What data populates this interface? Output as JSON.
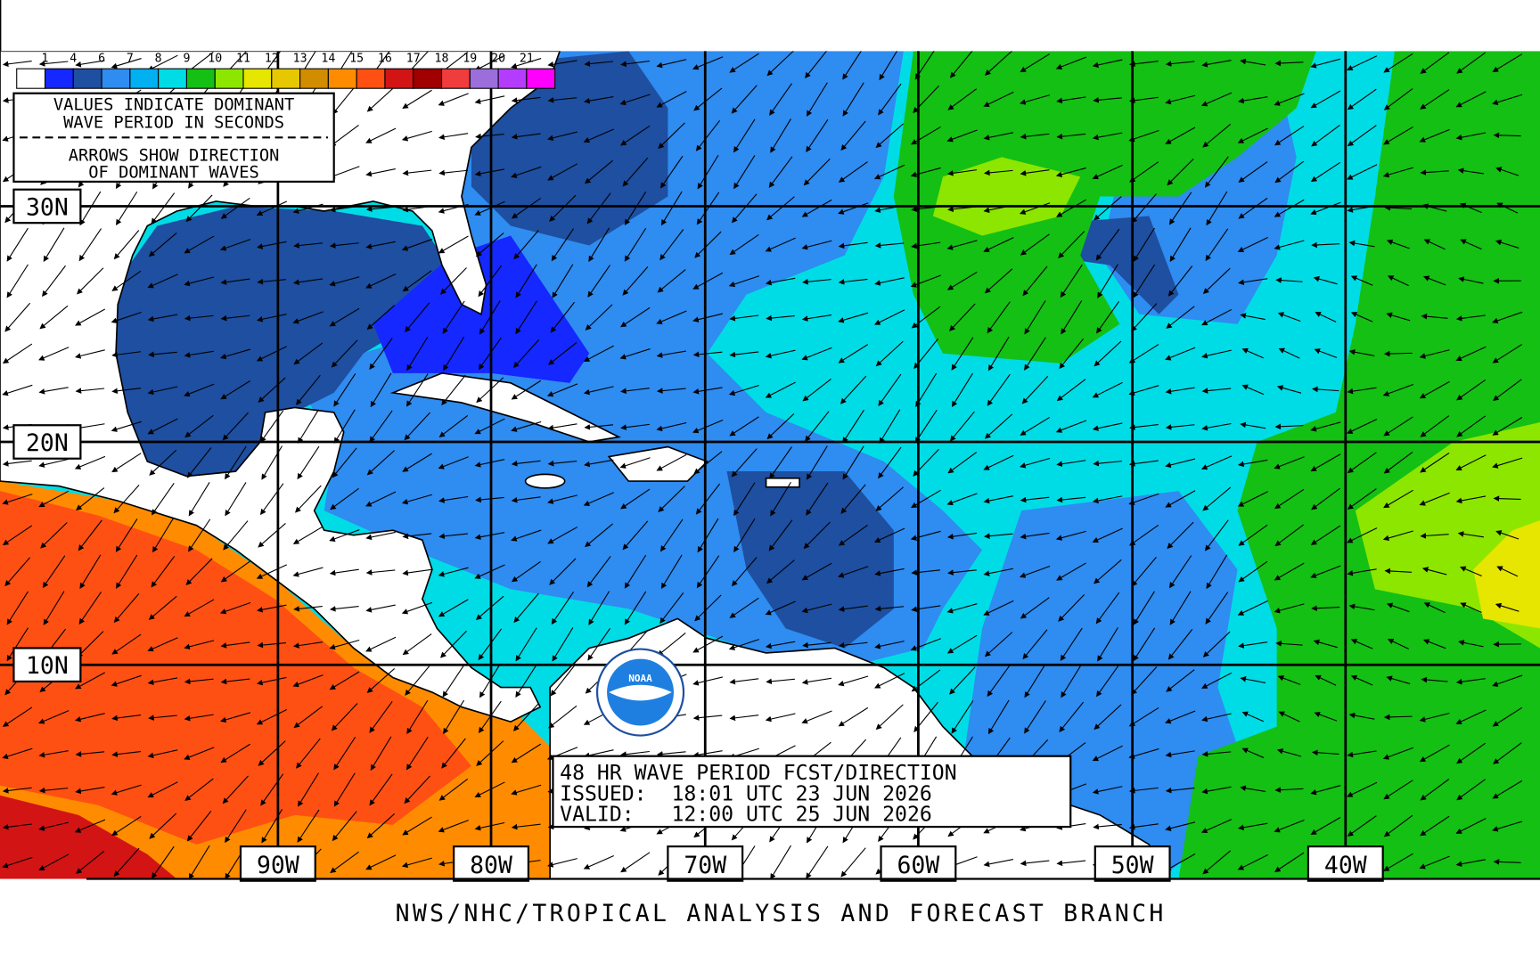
{
  "legend": {
    "labels": [
      1,
      4,
      6,
      7,
      8,
      9,
      10,
      11,
      12,
      13,
      14,
      15,
      16,
      17,
      18,
      19,
      20,
      21
    ],
    "colors": [
      "#ffffff",
      "#1428ff",
      "#1e4fa0",
      "#2f8cf0",
      "#00b0f0",
      "#00dce6",
      "#14c014",
      "#8ce600",
      "#e6e600",
      "#e6c800",
      "#d28c00",
      "#ff8c00",
      "#ff5014",
      "#d21414",
      "#a00000",
      "#f03c3c",
      "#9b6edc",
      "#b43cff",
      "#ff00ff"
    ]
  },
  "notes": [
    "VALUES INDICATE DOMINANT",
    "WAVE PERIOD IN SECONDS",
    "ARROWS SHOW DIRECTION",
    "OF DOMINANT WAVES"
  ],
  "lat_labels": [
    "30N",
    "20N",
    "10N"
  ],
  "lon_labels": [
    "90W",
    "80W",
    "70W",
    "60W",
    "50W",
    "40W"
  ],
  "info": [
    "48 HR WAVE PERIOD FCST/DIRECTION",
    "ISSUED:  18:01 UTC 23 JUN 2026",
    "VALID:   12:00 UTC 25 JUN 2026"
  ],
  "logo": "NOAA",
  "footer": "NWS/NHC/TROPICAL ANALYSIS AND FORECAST BRANCH"
}
